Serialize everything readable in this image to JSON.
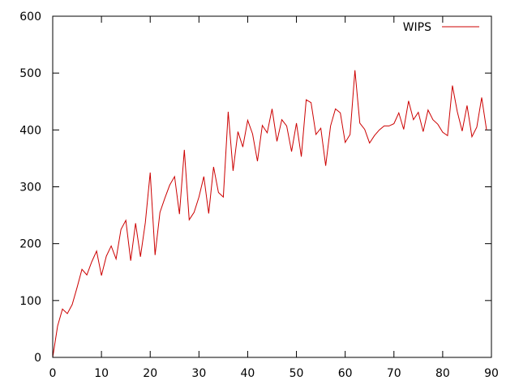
{
  "chart_data": {
    "type": "line",
    "xlim": [
      0,
      90
    ],
    "ylim": [
      0,
      600
    ],
    "x_ticks": [
      0,
      10,
      20,
      30,
      40,
      50,
      60,
      70,
      80,
      90
    ],
    "y_ticks": [
      0,
      100,
      200,
      300,
      400,
      500,
      600
    ],
    "grid": false,
    "legend_position": "top-right",
    "series": [
      {
        "name": "WIPS",
        "color": "#cc0000",
        "x": [
          0,
          1,
          2,
          3,
          4,
          5,
          6,
          7,
          8,
          9,
          10,
          11,
          12,
          13,
          14,
          15,
          16,
          17,
          18,
          19,
          20,
          21,
          22,
          23,
          24,
          25,
          26,
          27,
          28,
          29,
          30,
          31,
          32,
          33,
          34,
          35,
          36,
          37,
          38,
          39,
          40,
          41,
          42,
          43,
          44,
          45,
          46,
          47,
          48,
          49,
          50,
          51,
          52,
          53,
          54,
          55,
          56,
          57,
          58,
          59,
          60,
          61,
          62,
          63,
          64,
          65,
          66,
          67,
          68,
          69,
          70,
          71,
          72,
          73,
          74,
          75,
          76,
          77,
          78,
          79,
          80,
          81,
          82,
          83,
          84,
          85,
          86,
          87,
          88,
          89
        ],
        "y": [
          0,
          55,
          85,
          77,
          93,
          123,
          155,
          145,
          168,
          187,
          144,
          178,
          196,
          173,
          225,
          241,
          170,
          236,
          177,
          237,
          325,
          180,
          255,
          280,
          303,
          318,
          252,
          365,
          242,
          255,
          282,
          318,
          253,
          335,
          290,
          282,
          432,
          328,
          397,
          370,
          417,
          393,
          345,
          408,
          395,
          437,
          380,
          418,
          407,
          362,
          412,
          353,
          453,
          448,
          392,
          403,
          337,
          407,
          437,
          430,
          378,
          392,
          505,
          412,
          401,
          377,
          390,
          400,
          407,
          407,
          411,
          430,
          401,
          451,
          418,
          431,
          397,
          435,
          418,
          410,
          396,
          390,
          478,
          432,
          398,
          443,
          388,
          405,
          457,
          400
        ]
      }
    ]
  }
}
